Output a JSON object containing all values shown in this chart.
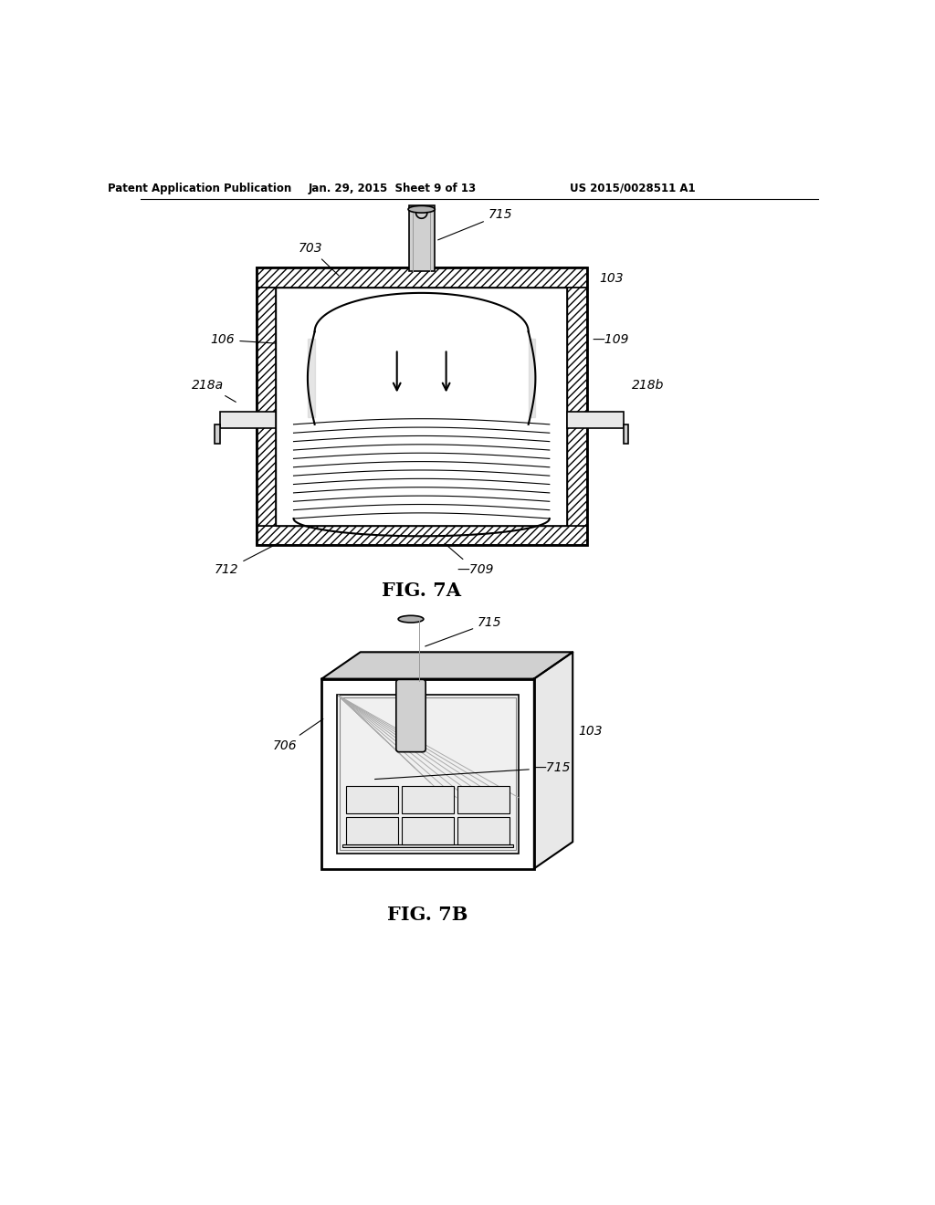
{
  "header_left": "Patent Application Publication",
  "header_mid": "Jan. 29, 2015  Sheet 9 of 13",
  "header_right": "US 2015/0028511 A1",
  "fig7a_label": "FIG. 7A",
  "fig7b_label": "FIG. 7B",
  "bg_color": "#ffffff",
  "line_color": "#000000",
  "gray_light": "#e8e8e8",
  "gray_med": "#d0d0d0",
  "gray_dark": "#b0b0b0",
  "hatch_gray": "#c8c8c8"
}
